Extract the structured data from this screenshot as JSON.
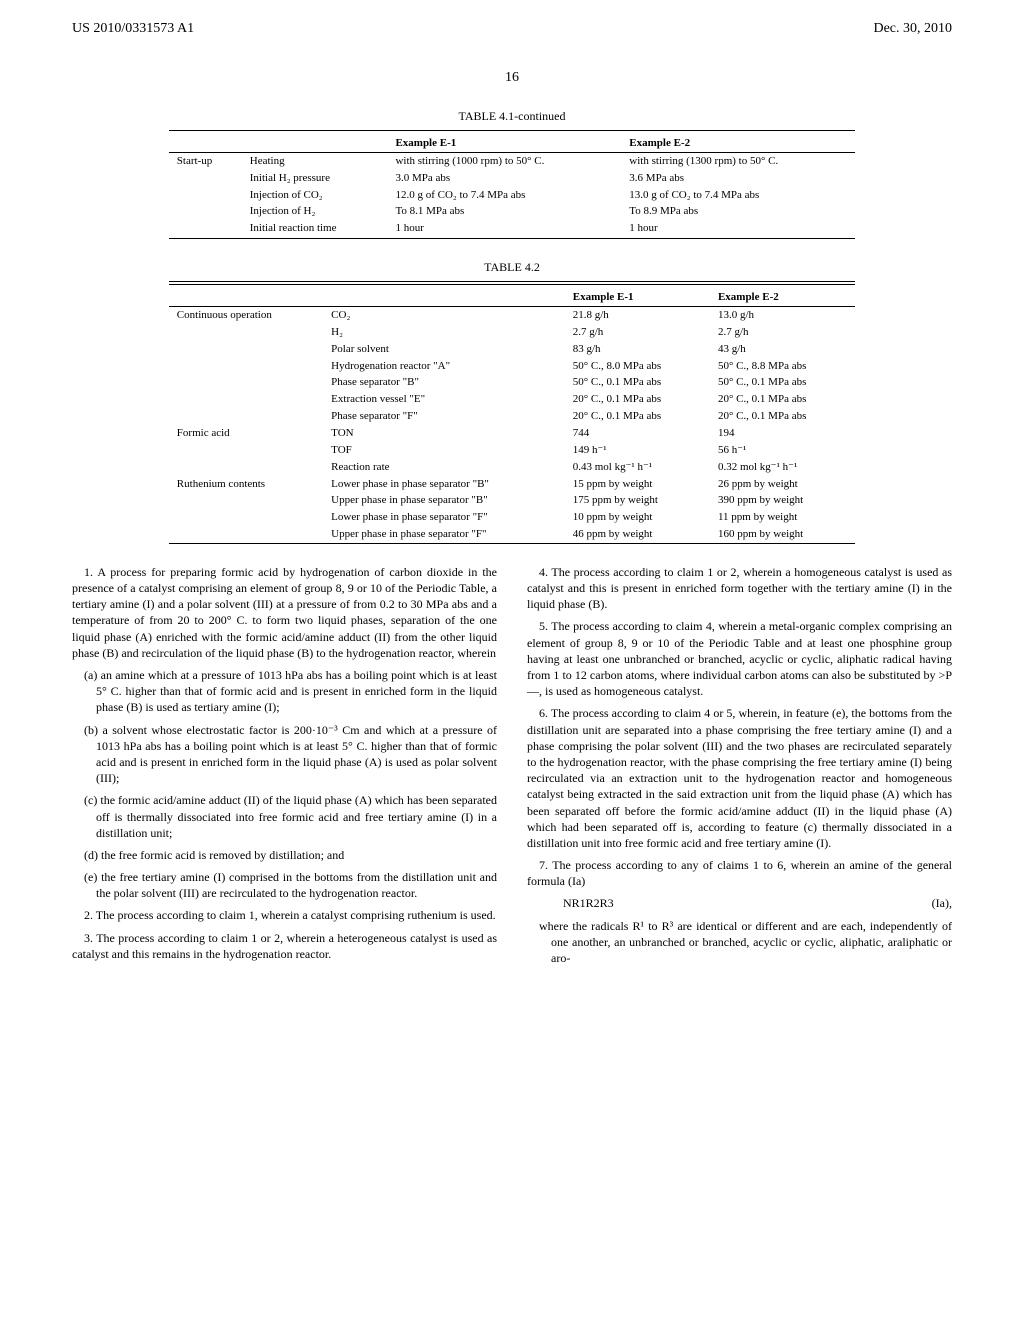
{
  "header": {
    "patent_id": "US 2010/0331573 A1",
    "date": "Dec. 30, 2010",
    "page_num": "16"
  },
  "table41": {
    "title": "TABLE 4.1-continued",
    "col_head_e1": "Example E-1",
    "col_head_e2": "Example E-2",
    "rows": [
      {
        "g": "Start-up",
        "p": "Heating",
        "e1": "with stirring (1000 rpm) to 50° C.",
        "e2": "with stirring (1300 rpm) to 50° C."
      },
      {
        "g": "",
        "p": "Initial H₂ pressure",
        "e1": "3.0 MPa abs",
        "e2": "3.6 MPa abs"
      },
      {
        "g": "",
        "p": "Injection of CO₂",
        "e1": "12.0 g of CO₂ to 7.4 MPa abs",
        "e2": "13.0 g of CO₂ to 7.4 MPa abs"
      },
      {
        "g": "",
        "p": "Injection of H₂",
        "e1": "To 8.1 MPa abs",
        "e2": "To 8.9 MPa abs"
      },
      {
        "g": "",
        "p": "Initial reaction time",
        "e1": "1 hour",
        "e2": "1 hour"
      }
    ]
  },
  "table42": {
    "title": "TABLE 4.2",
    "col_head_e1": "Example E-1",
    "col_head_e2": "Example E-2",
    "rows": [
      {
        "g": "Continuous operation",
        "p": "CO₂",
        "e1": "21.8 g/h",
        "e2": "13.0 g/h"
      },
      {
        "g": "",
        "p": "H₂",
        "e1": "2.7 g/h",
        "e2": "2.7 g/h"
      },
      {
        "g": "",
        "p": "Polar solvent",
        "e1": "83 g/h",
        "e2": "43 g/h"
      },
      {
        "g": "",
        "p": "Hydrogenation reactor \"A\"",
        "e1": "50° C., 8.0 MPa abs",
        "e2": "50° C., 8.8 MPa abs"
      },
      {
        "g": "",
        "p": "Phase separator \"B\"",
        "e1": "50° C., 0.1 MPa abs",
        "e2": "50° C., 0.1 MPa abs"
      },
      {
        "g": "",
        "p": "Extraction vessel \"E\"",
        "e1": "20° C., 0.1 MPa abs",
        "e2": "20° C., 0.1 MPa abs"
      },
      {
        "g": "",
        "p": "Phase separator \"F\"",
        "e1": "20° C., 0.1 MPa abs",
        "e2": "20° C., 0.1 MPa abs"
      },
      {
        "g": "Formic acid",
        "p": "TON",
        "e1": "744",
        "e2": "194"
      },
      {
        "g": "",
        "p": "TOF",
        "e1": "149 h⁻¹",
        "e2": "56 h⁻¹"
      },
      {
        "g": "",
        "p": "Reaction rate",
        "e1": "0.43 mol kg⁻¹ h⁻¹",
        "e2": "0.32 mol kg⁻¹ h⁻¹"
      },
      {
        "g": "Ruthenium contents",
        "p": "Lower phase in phase separator \"B\"",
        "e1": "15 ppm by weight",
        "e2": "26 ppm by weight"
      },
      {
        "g": "",
        "p": "Upper phase in phase separator \"B\"",
        "e1": "175 ppm by weight",
        "e2": "390 ppm by weight"
      },
      {
        "g": "",
        "p": "Lower phase in phase separator \"F\"",
        "e1": "10 ppm by weight",
        "e2": "11 ppm by weight"
      },
      {
        "g": "",
        "p": "Upper phase in phase separator \"F\"",
        "e1": "46 ppm by weight",
        "e2": "160 ppm by weight"
      }
    ]
  },
  "claims": {
    "c1": "1. A process for preparing formic acid by hydrogenation of carbon dioxide in the presence of a catalyst comprising an element of group 8, 9 or 10 of the Periodic Table, a tertiary amine (I) and a polar solvent (III) at a pressure of from 0.2 to 30 MPa abs and a temperature of from 20 to 200° C. to form two liquid phases, separation of the one liquid phase (A) enriched with the formic acid/amine adduct (II) from the other liquid phase (B) and recirculation of the liquid phase (B) to the hydrogenation reactor, wherein",
    "c1a": "(a) an amine which at a pressure of 1013 hPa abs has a boiling point which is at least 5° C. higher than that of formic acid and is present in enriched form in the liquid phase (B) is used as tertiary amine (I);",
    "c1b": "(b) a solvent whose electrostatic factor is 200·10⁻³ Cm and which at a pressure of 1013 hPa abs has a boiling point which is at least 5° C. higher than that of formic acid and is present in enriched form in the liquid phase (A) is used as polar solvent (III);",
    "c1c": "(c) the formic acid/amine adduct (II) of the liquid phase (A) which has been separated off is thermally dissociated into free formic acid and free tertiary amine (I) in a distillation unit;",
    "c1d": "(d) the free formic acid is removed by distillation; and",
    "c1e": "(e) the free tertiary amine (I) comprised in the bottoms from the distillation unit and the polar solvent (III) are recirculated to the hydrogenation reactor.",
    "c2": "2. The process according to claim 1, wherein a catalyst comprising ruthenium is used.",
    "c3": "3. The process according to claim 1 or 2, wherein a heterogeneous catalyst is used as catalyst and this remains in the hydrogenation reactor.",
    "c4": "4. The process according to claim 1 or 2, wherein a homogeneous catalyst is used as catalyst and this is present in enriched form together with the tertiary amine (I) in the liquid phase (B).",
    "c5": "5. The process according to claim 4, wherein a metal-organic complex comprising an element of group 8, 9 or 10 of the Periodic Table and at least one phosphine group having at least one unbranched or branched, acyclic or cyclic, aliphatic radical having from 1 to 12 carbon atoms, where individual carbon atoms can also be substituted by >P—, is used as homogeneous catalyst.",
    "c6": "6. The process according to claim 4 or 5, wherein, in feature (e), the bottoms from the distillation unit are separated into a phase comprising the free tertiary amine (I) and a phase comprising the polar solvent (III) and the two phases are recirculated separately to the hydrogenation reactor, with the phase comprising the free tertiary amine (I) being recirculated via an extraction unit to the hydrogenation reactor and homogeneous catalyst being extracted in the said extraction unit from the liquid phase (A) which has been separated off before the formic acid/amine adduct (II) in the liquid phase (A) which had been separated off is, according to feature (c) thermally dissociated in a distillation unit into free formic acid and free tertiary amine (I).",
    "c7": "7. The process according to any of claims 1 to 6, wherein an amine of the general formula (Ia)",
    "c7_formula": "NR1R2R3",
    "c7_tag": "(Ia),",
    "c7b": "where the radicals R¹ to R³ are identical or different and are each, independently of one another, an unbranched or branched, acyclic or cyclic, aliphatic, araliphatic or aro-"
  }
}
